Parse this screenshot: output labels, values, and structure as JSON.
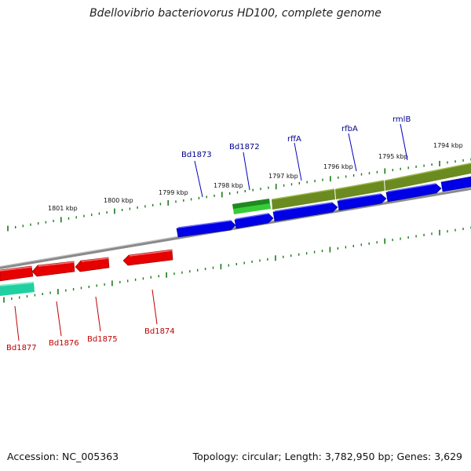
{
  "title": "Bdellovibrio bacteriovorus HD100, complete genome",
  "footer": {
    "accession": "Accession: NC_005363",
    "summary": "Topology: circular; Length: 3,782,950 bp; Genes: 3,629"
  },
  "colors": {
    "backbone": "#8a8a8a",
    "tick": "#1a7a1a",
    "forward_gene": "#0000e6",
    "reverse_gene": "#e60000",
    "trna_dark": "#1f8a1f",
    "trna_light": "#38cc38",
    "olive": "#6b8a1f",
    "cyan_green": "#20d0a0",
    "label_forward": "#00008b",
    "label_reverse": "#c00000"
  },
  "kbp_labels": [
    "1801 kbp",
    "1800 kbp",
    "1799 kbp",
    "1798 kbp",
    "1797 kbp",
    "1796 kbp",
    "1795 kbp",
    "1794 kbp"
  ],
  "forward_labels": [
    "Bd1873",
    "Bd1872",
    "rffA",
    "rfbA",
    "rmlB"
  ],
  "reverse_labels": [
    "Bd1877",
    "Bd1876",
    "Bd1875",
    "Bd1874"
  ]
}
